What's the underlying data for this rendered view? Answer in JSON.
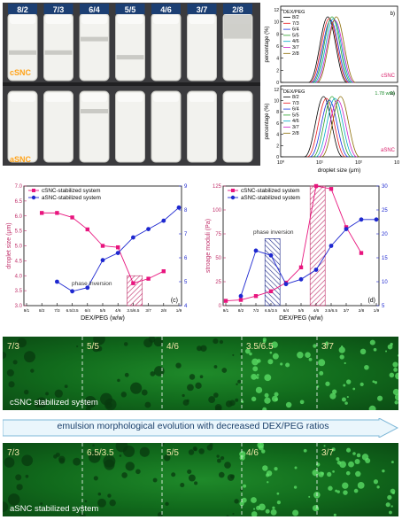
{
  "photo": {
    "top_labels": [
      "8/2",
      "7/3",
      "6/4",
      "5/5",
      "4/6",
      "3/7",
      "2/8"
    ],
    "row_labels": [
      "cSNC",
      "aSNC"
    ]
  },
  "dist_panels": [
    {
      "panel_letter": "b)",
      "legend_title": "DEX/PEG",
      "legend": [
        "8/2",
        "7/3",
        "6/4",
        "5/5",
        "4/6",
        "3/7",
        "2/8"
      ],
      "ylabel": "percentage (%)",
      "yticks": [
        "0",
        "2",
        "4",
        "6",
        "8",
        "10",
        "12"
      ],
      "tag": "cSNC",
      "colors": [
        "#000000",
        "#e8151b",
        "#1632e0",
        "#2aa02a",
        "#00a8c8",
        "#c81ec8",
        "#8a6a00"
      ],
      "peaks": [
        25,
        23,
        22,
        21,
        20,
        19,
        18
      ]
    },
    {
      "panel_letter": "a)",
      "legend_title": "DEX/PEG",
      "legend": [
        "8/2",
        "7/3",
        "6/4",
        "5/5",
        "4/6",
        "3/7",
        "2/8"
      ],
      "ylabel": "percentage (%)",
      "yticks": [
        "0",
        "2",
        "4",
        "6",
        "8",
        "10",
        "12"
      ],
      "tag": "aSNC",
      "extra": "1.78 wt%",
      "xlabel": "droplet size (μm)",
      "xticks": [
        "10⁰",
        "10¹",
        "10²",
        "10³"
      ],
      "colors": [
        "#000000",
        "#e8151b",
        "#1632e0",
        "#2aa02a",
        "#00a8c8",
        "#c81ec8",
        "#8a6a00"
      ],
      "peaks": [
        30,
        27,
        24,
        20,
        16,
        13,
        11
      ]
    }
  ],
  "chart_data": [
    {
      "type": "line",
      "panel_letter": "(c)",
      "categories": [
        "9/1",
        "8/2",
        "7/3",
        "6.5/3.5",
        "6/4",
        "5/5",
        "4/6",
        "3.5/6.5",
        "3/7",
        "2/8",
        "1/9"
      ],
      "xlabel": "DEX/PEG (w/w)",
      "ylabel": "droplet size (μm)",
      "yticks": [
        "3.0",
        "3.5",
        "4.0",
        "4.5",
        "5.0",
        "5.5",
        "6.0",
        "6.5",
        "7.0"
      ],
      "ylim": [
        3.0,
        7.0
      ],
      "y2ticks": [
        "4",
        "5",
        "6",
        "7",
        "8",
        "9"
      ],
      "y2lim": [
        4,
        9
      ],
      "annotation": "phase inversion",
      "series": [
        {
          "name": "cSNC-stabilized system",
          "axis": "left",
          "color": "#e8157e",
          "marker": "square",
          "x": [
            1,
            2,
            3,
            4,
            5,
            6,
            7,
            8,
            9
          ],
          "values": [
            6.1,
            6.1,
            5.95,
            5.55,
            5.0,
            4.95,
            3.75,
            3.9,
            4.15
          ]
        },
        {
          "name": "aSNC-stabilized system",
          "axis": "right",
          "color": "#1e28d0",
          "marker": "circle",
          "x": [
            2,
            3,
            4,
            5,
            6,
            7,
            8,
            9,
            10
          ],
          "values": [
            5.0,
            4.6,
            4.75,
            5.9,
            6.2,
            6.85,
            7.2,
            7.55,
            8.1
          ]
        }
      ]
    },
    {
      "type": "line",
      "panel_letter": "(d)",
      "categories": [
        "9/1",
        "8/2",
        "7/3",
        "6.5/3.5",
        "6/4",
        "5/5",
        "4/6",
        "3.5/6.5",
        "3/7",
        "2/8",
        "1/9"
      ],
      "xlabel": "DEX/PEG (w/w)",
      "ylabel": "stroage moduli (Pa)",
      "yticks": [
        "0",
        "25",
        "50",
        "75",
        "100",
        "125"
      ],
      "ylim": [
        0,
        125
      ],
      "y2ticks": [
        "5",
        "10",
        "15",
        "20",
        "25",
        "30"
      ],
      "y2lim": [
        5,
        30
      ],
      "annotation": "phase inversion",
      "series": [
        {
          "name": "cSNC-stabilized system",
          "axis": "left",
          "color": "#e8157e",
          "marker": "square",
          "x": [
            0,
            1,
            2,
            3,
            4,
            5,
            6,
            7,
            8,
            9,
            10
          ],
          "values": [
            5,
            6,
            10,
            15,
            24,
            40,
            125,
            122,
            82,
            55,
            null
          ]
        },
        {
          "name": "aSNC-stabilized system",
          "axis": "right",
          "color": "#1e28d0",
          "marker": "circle",
          "x": [
            1,
            2,
            3,
            4,
            5,
            6,
            7,
            8,
            9,
            10
          ],
          "values": [
            7,
            16.5,
            15.5,
            9.5,
            10.5,
            12.5,
            17.5,
            21,
            23,
            23
          ]
        }
      ]
    }
  ],
  "micro_top": {
    "labels": [
      "7/3",
      "5/5",
      "4/6",
      "3.5/6.5",
      "3/7"
    ],
    "caption": "cSNC stabilized system"
  },
  "banner": {
    "text": "emulsion morphological evolution with decreased DEX/PEG ratios"
  },
  "micro_bottom": {
    "labels": [
      "7/3",
      "6.5/3.5",
      "5/5",
      "4/6",
      "3/7"
    ],
    "caption": "aSNC stabilized system"
  }
}
